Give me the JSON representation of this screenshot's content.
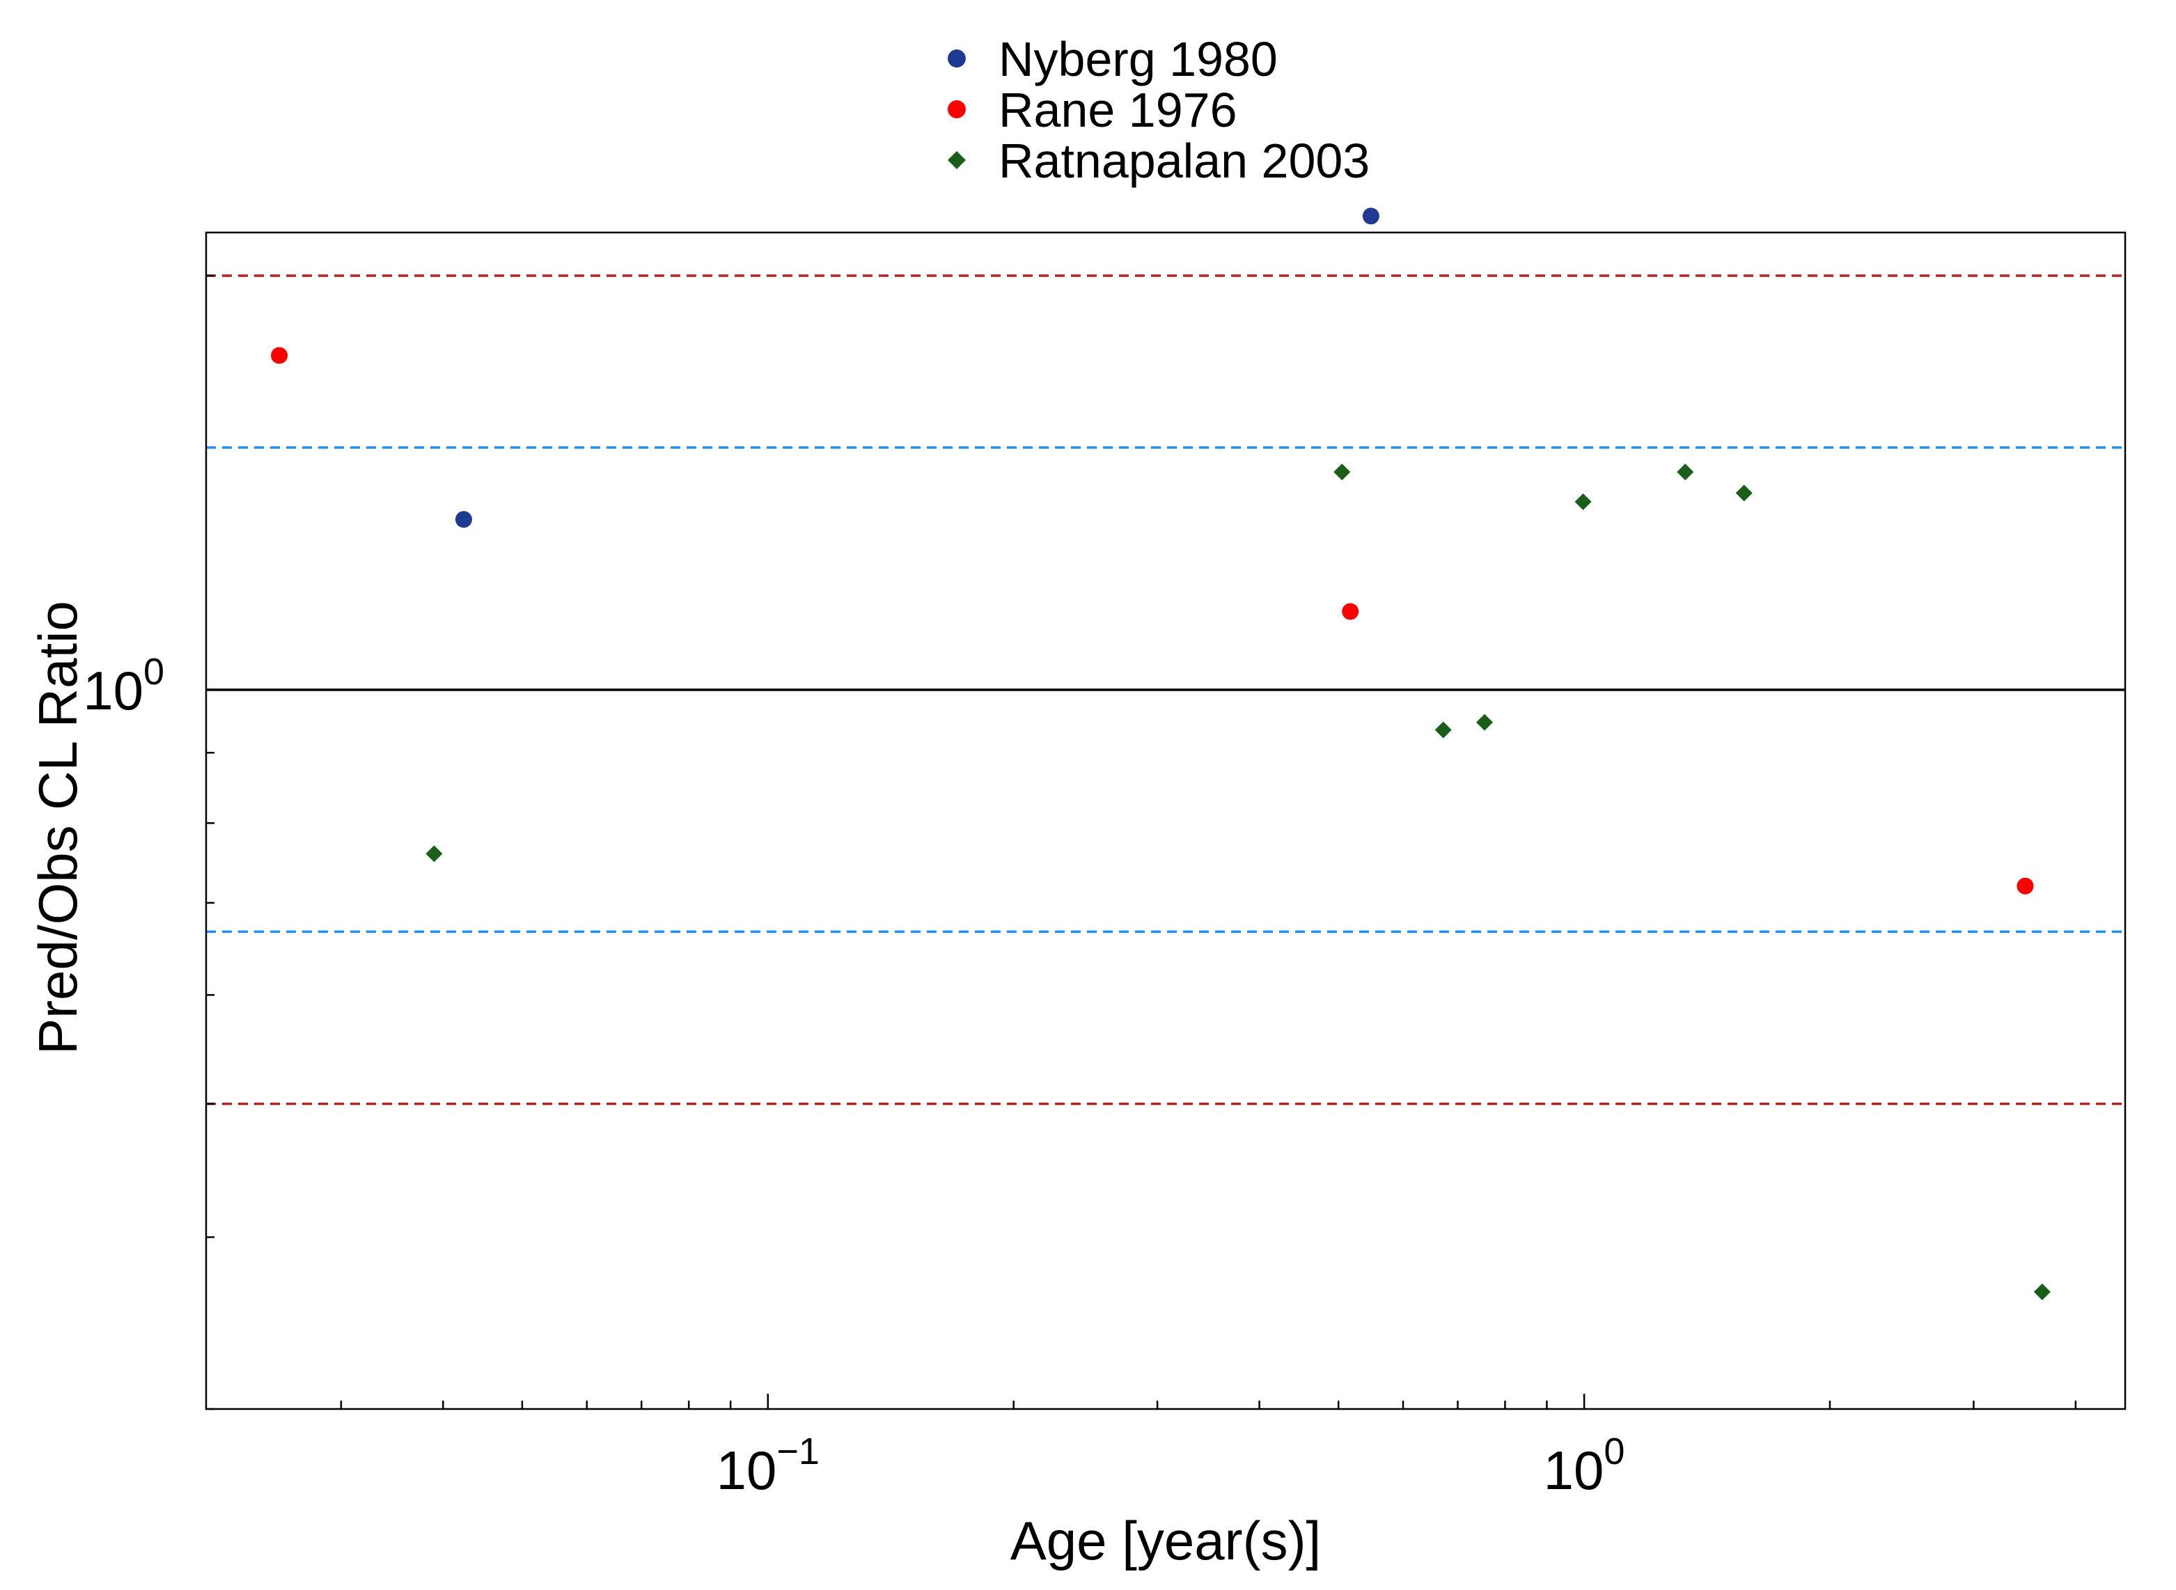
{
  "chart_data": {
    "type": "scatter",
    "xlabel": "Age [year(s)]",
    "ylabel": "Pred/Obs CL Ratio",
    "xscale": "log",
    "yscale": "log",
    "xlim": [
      0.0205,
      4.6
    ],
    "ylim": [
      0.3,
      2.15
    ],
    "x_major_ticks": [
      {
        "value": 0.1,
        "base": "10",
        "exponent": "−1"
      },
      {
        "value": 1,
        "base": "10",
        "exponent": "0"
      }
    ],
    "y_major_ticks": [
      {
        "value": 1,
        "base": "10",
        "exponent": "0"
      }
    ],
    "grid": false,
    "legend_position": "top-center",
    "reference_lines": [
      {
        "y": 1.0,
        "color": "#000000",
        "style": "solid"
      },
      {
        "y": 1.5,
        "color": "#1f8fff",
        "style": "dashed"
      },
      {
        "y": 0.667,
        "color": "#1f8fff",
        "style": "dashed"
      },
      {
        "y": 2.0,
        "color": "#b22222",
        "style": "dashed"
      },
      {
        "y": 0.5,
        "color": "#b22222",
        "style": "dashed"
      }
    ],
    "series": [
      {
        "name": "Nyberg 1980",
        "color": "#1f3a93",
        "marker": "circle",
        "points": [
          [
            0.0424,
            1.33
          ],
          [
            0.548,
            2.21
          ]
        ]
      },
      {
        "name": "Rane 1976",
        "color": "#ff0000",
        "marker": "circle",
        "points": [
          [
            0.0252,
            1.75
          ],
          [
            0.517,
            1.14
          ],
          [
            3.47,
            0.72
          ]
        ]
      },
      {
        "name": "Ratnapalan 2003",
        "color": "#1a5e1a",
        "marker": "diamond",
        "points": [
          [
            0.039,
            0.76
          ],
          [
            0.505,
            1.44
          ],
          [
            0.672,
            0.935
          ],
          [
            0.755,
            0.947
          ],
          [
            0.997,
            1.37
          ],
          [
            1.33,
            1.44
          ],
          [
            1.57,
            1.39
          ],
          [
            3.64,
            0.365
          ]
        ]
      }
    ]
  }
}
